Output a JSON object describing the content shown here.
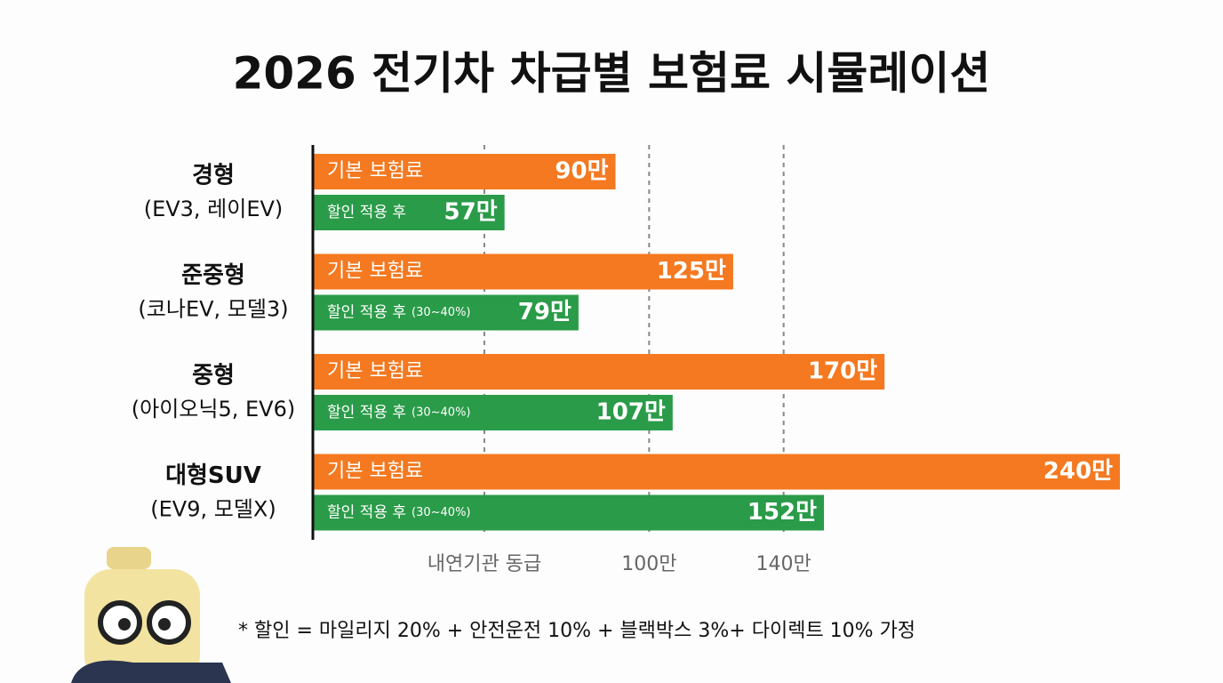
{
  "chart_data": {
    "type": "hbar",
    "title": "2026 전기차 차급별 보험료 시뮬레이션",
    "categories": [
      "경형",
      "준중형",
      "중형",
      "대형SUV"
    ],
    "category_models": [
      "(EV3, 레이EV)",
      "(코나EV, 모델3)",
      "(아이오닉5, EV6)",
      "(EV9, 모델X)"
    ],
    "series": [
      {
        "name": "기본 보험료",
        "color": "#f47920",
        "values": [
          90,
          125,
          170,
          240
        ],
        "value_labels": [
          "90만",
          "125만",
          "170만",
          "240만"
        ]
      },
      {
        "name": "할인 적용 후",
        "color": "#2a9b48",
        "values": [
          57,
          79,
          107,
          152
        ],
        "value_labels": [
          "57만",
          "79만",
          "107만",
          "152만"
        ],
        "bar_notes": [
          null,
          "(30~40%)",
          "(30~40%)",
          "(30~40%)"
        ]
      }
    ],
    "xlim": [
      0,
      240
    ],
    "xticks": [
      {
        "value": 51,
        "label": "내연기관 동급"
      },
      {
        "value": 100,
        "label": "100만"
      },
      {
        "value": 140,
        "label": "140만"
      }
    ],
    "grid": true,
    "footnote": "* 할인 = 마일리지 20% + 안전운전 10% + 블랙박스 3%+ 다이렉트 10% 가정"
  }
}
